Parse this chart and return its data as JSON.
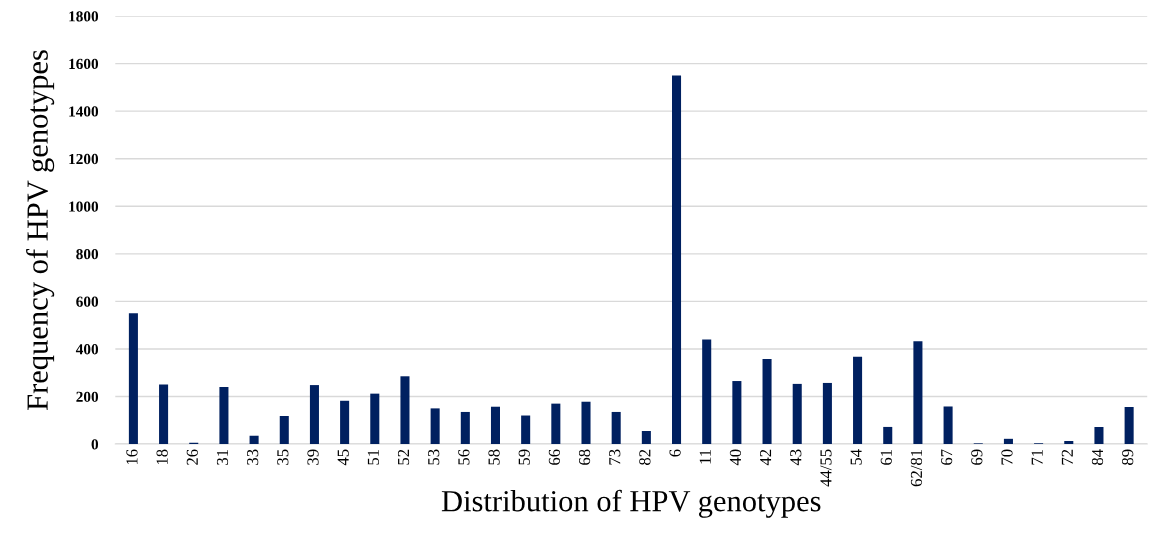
{
  "chart_data": {
    "type": "bar",
    "xlabel": "Distribution of HPV genotypes",
    "ylabel": "Frequency of HPV genotypes",
    "categories": [
      "16",
      "18",
      "26",
      "31",
      "33",
      "35",
      "39",
      "45",
      "51",
      "52",
      "53",
      "56",
      "58",
      "59",
      "66",
      "68",
      "73",
      "82",
      "6",
      "11",
      "40",
      "42",
      "43",
      "44/55",
      "54",
      "61",
      "62/81",
      "67",
      "69",
      "70",
      "71",
      "72",
      "84",
      "89"
    ],
    "values": [
      550,
      250,
      5,
      240,
      35,
      118,
      248,
      182,
      212,
      285,
      150,
      135,
      157,
      120,
      170,
      178,
      135,
      55,
      1550,
      440,
      265,
      358,
      253,
      257,
      367,
      72,
      432,
      158,
      3,
      22,
      3,
      13,
      72,
      156
    ],
    "color": "#002060",
    "ylim": [
      0,
      1800
    ],
    "yticks": [
      0,
      200,
      400,
      600,
      800,
      1000,
      1200,
      1400,
      1600,
      1800
    ],
    "grid": "y"
  }
}
